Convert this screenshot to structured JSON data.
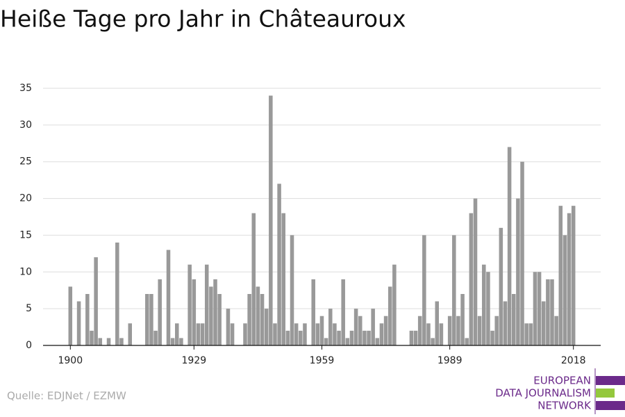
{
  "chart_data": {
    "type": "bar",
    "title": "Heiße Tage pro Jahr in Châteauroux",
    "source": "Quelle: EDJNet / EZMW",
    "logo": [
      "EUROPEAN",
      "DATA JOURNALISM",
      "NETWORK"
    ],
    "color": "#999999",
    "x": [
      1900,
      1901,
      1902,
      1903,
      1904,
      1905,
      1906,
      1907,
      1908,
      1909,
      1910,
      1911,
      1912,
      1913,
      1914,
      1915,
      1916,
      1917,
      1918,
      1919,
      1920,
      1921,
      1922,
      1923,
      1924,
      1925,
      1926,
      1927,
      1928,
      1929,
      1930,
      1931,
      1932,
      1933,
      1934,
      1935,
      1936,
      1937,
      1938,
      1939,
      1940,
      1941,
      1942,
      1943,
      1944,
      1945,
      1946,
      1947,
      1948,
      1949,
      1950,
      1951,
      1952,
      1953,
      1954,
      1955,
      1956,
      1957,
      1958,
      1959,
      1960,
      1961,
      1962,
      1963,
      1964,
      1965,
      1966,
      1967,
      1968,
      1969,
      1970,
      1971,
      1972,
      1973,
      1974,
      1975,
      1976,
      1977,
      1978,
      1979,
      1980,
      1981,
      1982,
      1983,
      1984,
      1985,
      1986,
      1987,
      1988,
      1989,
      1990,
      1991,
      1992,
      1993,
      1994,
      1995,
      1996,
      1997,
      1998,
      1999,
      2000,
      2001,
      2002,
      2003,
      2004,
      2005,
      2006,
      2007,
      2008,
      2009,
      2010,
      2011,
      2012,
      2013,
      2014,
      2015,
      2016,
      2017,
      2018
    ],
    "values": [
      8,
      0,
      6,
      0,
      7,
      2,
      12,
      1,
      0,
      1,
      0,
      14,
      1,
      0,
      3,
      0,
      0,
      0,
      7,
      7,
      2,
      9,
      0,
      13,
      1,
      3,
      1,
      0,
      11,
      9,
      3,
      3,
      11,
      8,
      9,
      7,
      0,
      5,
      3,
      0,
      0,
      3,
      7,
      18,
      8,
      7,
      5,
      34,
      3,
      22,
      18,
      2,
      15,
      3,
      2,
      3,
      0,
      9,
      3,
      4,
      1,
      5,
      3,
      2,
      9,
      1,
      2,
      5,
      4,
      2,
      2,
      5,
      1,
      3,
      4,
      8,
      11,
      0,
      0,
      0,
      2,
      2,
      4,
      15,
      3,
      1,
      6,
      3,
      0,
      4,
      15,
      4,
      7,
      1,
      18,
      20,
      4,
      11,
      10,
      2,
      4,
      16,
      6,
      27,
      7,
      20,
      25,
      3,
      3,
      10,
      10,
      6,
      9,
      9,
      4,
      19,
      15,
      18,
      19
    ],
    "xlim": [
      1893.6,
      2024.4
    ],
    "xticks": [
      1900,
      1929,
      1959,
      1989,
      2018
    ],
    "ylim": [
      0,
      35
    ],
    "yticks": [
      0,
      5,
      10,
      15,
      20,
      25,
      30,
      35
    ],
    "grid": true
  }
}
